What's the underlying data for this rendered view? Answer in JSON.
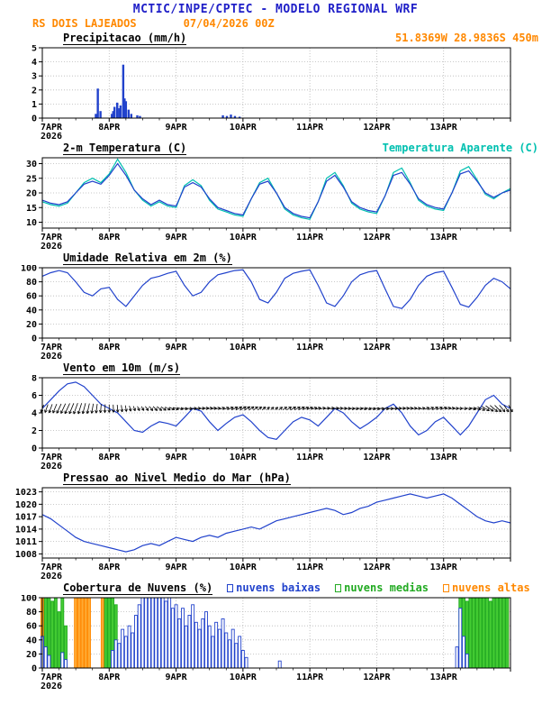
{
  "header": {
    "title": "MCTIC/INPE/CPTEC - MODELO REGIONAL WRF",
    "station": "RS DOIS LAJEADOS",
    "run": "07/04/2026 00Z",
    "location": "51.8369W 28.9836S 450m",
    "title_color": "#2020c8",
    "accent_color": "#ff8800"
  },
  "x_axis": {
    "labels": [
      "7APR",
      "8APR",
      "9APR",
      "10APR",
      "11APR",
      "12APR",
      "13APR"
    ],
    "year": "2026",
    "days": 7
  },
  "chart_data": [
    {
      "id": "precip",
      "title": "Precipitacao (mm/h)",
      "right_label": "51.8369W 28.9836S 450m",
      "right_label_color": "#ff8800",
      "type": "bar",
      "ylabel": "mm/h",
      "ylim": [
        0,
        5
      ],
      "yticks": [
        0,
        1,
        2,
        3,
        4,
        5
      ],
      "color": "#2142cc",
      "bars": [
        [
          0.8,
          0.3
        ],
        [
          0.83,
          2.1
        ],
        [
          0.87,
          0.5
        ],
        [
          1.04,
          0.3
        ],
        [
          1.06,
          0.5
        ],
        [
          1.08,
          0.8
        ],
        [
          1.12,
          1.1
        ],
        [
          1.15,
          0.7
        ],
        [
          1.17,
          0.9
        ],
        [
          1.21,
          3.8
        ],
        [
          1.23,
          1.4
        ],
        [
          1.25,
          1.2
        ],
        [
          1.29,
          0.6
        ],
        [
          1.33,
          0.3
        ],
        [
          1.42,
          0.2
        ],
        [
          1.46,
          0.15
        ],
        [
          2.7,
          0.2
        ],
        [
          2.76,
          0.15
        ],
        [
          2.82,
          0.25
        ],
        [
          2.88,
          0.15
        ],
        [
          2.95,
          0.1
        ]
      ]
    },
    {
      "id": "temp",
      "title": "2-m Temperatura (C)",
      "right_label": "Temperatura Aparente (C)",
      "right_label_color": "#00c0b0",
      "type": "line",
      "ylabel": "C",
      "ylim": [
        8,
        32
      ],
      "yticks": [
        10,
        15,
        20,
        25,
        30
      ],
      "series": [
        {
          "name": "Temperatura Aparente (C)",
          "color": "#00c0b0",
          "values": [
            17,
            16,
            15.5,
            16.5,
            20,
            23.5,
            25,
            23.5,
            26.5,
            31.5,
            27,
            21,
            17.5,
            15.5,
            17,
            15.5,
            15,
            22.5,
            24.5,
            22.5,
            17.5,
            14.5,
            13.5,
            12.5,
            12,
            18,
            23.5,
            25,
            20,
            14.5,
            12.5,
            11.5,
            11,
            17,
            25,
            27,
            22.5,
            16.5,
            14.5,
            13.5,
            13,
            19,
            27,
            28.5,
            23.5,
            17.5,
            15.5,
            14.5,
            14,
            20,
            27.5,
            29,
            24.5,
            19.5,
            18,
            20,
            21.5
          ]
        },
        {
          "name": "2-m Temperatura (C)",
          "color": "#2142cc",
          "values": [
            17.5,
            16.5,
            16,
            17,
            20,
            23,
            24,
            23,
            26,
            30,
            26,
            21,
            18,
            16,
            17.5,
            16,
            15.5,
            22,
            23.5,
            22,
            18,
            15,
            14,
            13,
            12.5,
            18,
            23,
            24,
            20,
            15,
            13,
            12,
            11.5,
            17,
            24,
            26,
            22,
            17,
            15,
            14,
            13.5,
            19,
            26,
            27,
            23,
            18,
            16,
            15,
            14.5,
            20,
            26.5,
            27.5,
            24,
            20,
            18.5,
            20,
            21
          ]
        }
      ]
    },
    {
      "id": "rh",
      "title": "Umidade Relativa em 2m (%)",
      "type": "line",
      "ylabel": "%",
      "ylim": [
        0,
        100
      ],
      "yticks": [
        0,
        20,
        40,
        60,
        80,
        100
      ],
      "series": [
        {
          "name": "Umidade Relativa",
          "color": "#2142cc",
          "values": [
            88,
            93,
            96,
            93,
            80,
            65,
            60,
            70,
            72,
            55,
            45,
            60,
            75,
            85,
            88,
            92,
            95,
            75,
            60,
            65,
            80,
            90,
            93,
            96,
            97,
            80,
            55,
            50,
            65,
            85,
            92,
            95,
            97,
            75,
            50,
            45,
            60,
            80,
            90,
            94,
            96,
            70,
            45,
            42,
            55,
            75,
            88,
            93,
            95,
            72,
            48,
            44,
            58,
            75,
            85,
            80,
            70
          ]
        }
      ]
    },
    {
      "id": "wind",
      "title": "Vento em 10m (m/s)",
      "type": "line",
      "ylabel": "m/s",
      "ylim": [
        0,
        8
      ],
      "yticks": [
        0,
        2,
        4,
        6,
        8
      ],
      "series": [
        {
          "name": "Vento 10m",
          "color": "#2142cc",
          "values": [
            4.5,
            5.5,
            6.5,
            7.3,
            7.5,
            7.0,
            6.0,
            5.0,
            4.5,
            4.0,
            3.0,
            2.0,
            1.8,
            2.5,
            3.0,
            2.8,
            2.5,
            3.5,
            4.5,
            4.2,
            3.0,
            2.0,
            2.8,
            3.5,
            3.8,
            3.0,
            2.0,
            1.2,
            1.0,
            2.0,
            3.0,
            3.5,
            3.2,
            2.5,
            3.5,
            4.5,
            4.0,
            3.0,
            2.2,
            2.8,
            3.5,
            4.5,
            5.0,
            4.0,
            2.5,
            1.5,
            2.0,
            3.0,
            3.5,
            2.5,
            1.5,
            2.5,
            4.0,
            5.5,
            6.0,
            5.0,
            4.5
          ]
        }
      ],
      "barbs": {
        "anchor": 4.5,
        "color": "#000000",
        "dirs": [
          200,
          200,
          205,
          205,
          200,
          195,
          190,
          185,
          180,
          175,
          170,
          160,
          150,
          140,
          130,
          120,
          110,
          100,
          90,
          85,
          80,
          75,
          70,
          65,
          60,
          55,
          50,
          45,
          50,
          55,
          60,
          65,
          70,
          75,
          80,
          85,
          90,
          95,
          100,
          105,
          100,
          95,
          90,
          85,
          80,
          75,
          70,
          65,
          70,
          80,
          90,
          100,
          110,
          120,
          130,
          140,
          150
        ]
      }
    },
    {
      "id": "slp",
      "title": "Pressao ao Nivel Medio do Mar (hPa)",
      "type": "line",
      "ylabel": "hPa",
      "ylim": [
        1007,
        1024
      ],
      "yticks": [
        1008,
        1011,
        1014,
        1017,
        1020,
        1023
      ],
      "series": [
        {
          "name": "Pressao nivel do mar",
          "color": "#2142cc",
          "values": [
            1017.5,
            1016.5,
            1015,
            1013.5,
            1012,
            1011,
            1010.5,
            1010,
            1009.5,
            1009,
            1008.5,
            1009,
            1010,
            1010.5,
            1010,
            1011,
            1012,
            1011.5,
            1011,
            1012,
            1012.5,
            1012,
            1013,
            1013.5,
            1014,
            1014.5,
            1014,
            1015,
            1016,
            1016.5,
            1017,
            1017.5,
            1018,
            1018.5,
            1019,
            1018.5,
            1017.5,
            1018,
            1019,
            1019.5,
            1020.5,
            1021,
            1021.5,
            1022,
            1022.5,
            1022,
            1021.5,
            1022,
            1022.5,
            1021.5,
            1020,
            1018.5,
            1017,
            1016,
            1015.5,
            1016,
            1015.5
          ]
        }
      ]
    },
    {
      "id": "clouds",
      "title": "Cobertura de Nuvens (%)",
      "type": "bar-multi",
      "ylabel": "%",
      "ylim": [
        0,
        100
      ],
      "yticks": [
        0,
        20,
        40,
        60,
        80,
        100
      ],
      "legend": [
        {
          "label": "nuvens baixas",
          "color": "#2142cc"
        },
        {
          "label": "nuvens medias",
          "color": "#22aa22"
        },
        {
          "label": "nuvens altas",
          "color": "#ff8800"
        }
      ],
      "series": [
        {
          "name": "nuvens altas",
          "color": "#ff8800",
          "fill": "#ffaa33",
          "bars": [
            [
              0.0,
              100
            ],
            [
              0.05,
              100
            ],
            [
              0.5,
              100
            ],
            [
              0.55,
              100
            ],
            [
              0.6,
              100
            ],
            [
              0.65,
              100
            ],
            [
              0.7,
              100
            ],
            [
              0.9,
              100
            ],
            [
              0.95,
              100
            ],
            [
              1.0,
              100
            ],
            [
              6.45,
              100
            ],
            [
              6.5,
              100
            ],
            [
              6.55,
              100
            ],
            [
              6.9,
              100
            ],
            [
              6.95,
              100
            ]
          ]
        },
        {
          "name": "nuvens medias",
          "color": "#22aa22",
          "fill": "#44cc33",
          "bars": [
            [
              0.05,
              100
            ],
            [
              0.1,
              100
            ],
            [
              0.15,
              95
            ],
            [
              0.2,
              100
            ],
            [
              0.25,
              80
            ],
            [
              0.3,
              100
            ],
            [
              0.35,
              60
            ],
            [
              0.95,
              100
            ],
            [
              1.0,
              100
            ],
            [
              1.05,
              100
            ],
            [
              1.1,
              90
            ],
            [
              6.25,
              100
            ],
            [
              6.3,
              100
            ],
            [
              6.35,
              95
            ],
            [
              6.4,
              100
            ],
            [
              6.45,
              100
            ],
            [
              6.5,
              100
            ],
            [
              6.55,
              100
            ],
            [
              6.6,
              100
            ],
            [
              6.65,
              100
            ],
            [
              6.7,
              95
            ],
            [
              6.75,
              100
            ],
            [
              6.8,
              100
            ],
            [
              6.85,
              100
            ],
            [
              6.9,
              100
            ],
            [
              6.95,
              100
            ]
          ]
        },
        {
          "name": "nuvens baixas",
          "color": "#2142cc",
          "fill": "none",
          "bars": [
            [
              0.0,
              45
            ],
            [
              0.05,
              30
            ],
            [
              0.1,
              18
            ],
            [
              0.3,
              22
            ],
            [
              0.35,
              12
            ],
            [
              1.05,
              25
            ],
            [
              1.1,
              40
            ],
            [
              1.15,
              35
            ],
            [
              1.2,
              55
            ],
            [
              1.25,
              45
            ],
            [
              1.3,
              60
            ],
            [
              1.35,
              50
            ],
            [
              1.4,
              75
            ],
            [
              1.45,
              90
            ],
            [
              1.5,
              100
            ],
            [
              1.55,
              100
            ],
            [
              1.6,
              100
            ],
            [
              1.65,
              100
            ],
            [
              1.7,
              100
            ],
            [
              1.75,
              100
            ],
            [
              1.8,
              100
            ],
            [
              1.85,
              95
            ],
            [
              1.9,
              100
            ],
            [
              1.95,
              85
            ],
            [
              2.0,
              90
            ],
            [
              2.05,
              70
            ],
            [
              2.1,
              85
            ],
            [
              2.15,
              60
            ],
            [
              2.2,
              75
            ],
            [
              2.25,
              90
            ],
            [
              2.3,
              65
            ],
            [
              2.35,
              55
            ],
            [
              2.4,
              70
            ],
            [
              2.45,
              80
            ],
            [
              2.5,
              60
            ],
            [
              2.55,
              45
            ],
            [
              2.6,
              65
            ],
            [
              2.65,
              55
            ],
            [
              2.7,
              70
            ],
            [
              2.75,
              50
            ],
            [
              2.8,
              40
            ],
            [
              2.85,
              55
            ],
            [
              2.9,
              35
            ],
            [
              2.95,
              45
            ],
            [
              3.0,
              25
            ],
            [
              3.05,
              15
            ],
            [
              3.55,
              10
            ],
            [
              6.2,
              30
            ],
            [
              6.25,
              85
            ],
            [
              6.3,
              45
            ],
            [
              6.35,
              20
            ]
          ]
        }
      ]
    }
  ]
}
